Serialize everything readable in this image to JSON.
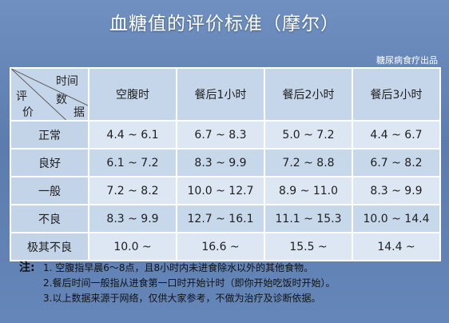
{
  "title": "血糖值的评价标准（摩尔）",
  "source": "糖尿病食疗出品",
  "table": {
    "corner": {
      "time": "时间",
      "data_1": "数",
      "data_2": "据",
      "eval_1": "评",
      "eval_2": "价"
    },
    "columns": [
      "空腹时",
      "餐后1小时",
      "餐后2小时",
      "餐后3小时"
    ],
    "rows": [
      {
        "label": "正常",
        "values": [
          "4.4 ~ 6.1",
          "6.7 ~ 8.3",
          "5.0 ~ 7.2",
          "4.4 ~ 6.7"
        ]
      },
      {
        "label": "良好",
        "values": [
          "6.1 ~ 7.2",
          "8.3 ~ 9.9",
          "7.2 ~ 8.8",
          "6.7 ~ 8.2"
        ]
      },
      {
        "label": "一般",
        "values": [
          "7.2 ~ 8.2",
          "10.0 ~ 12.7",
          "8.9 ~ 11.0",
          "8.3 ~ 9.9"
        ]
      },
      {
        "label": "不良",
        "values": [
          "8.3 ~ 9.9",
          "12.7 ~ 16.1",
          "11.1 ~ 15.3",
          "10.0 ~ 14.4"
        ]
      },
      {
        "label": "极其不良",
        "values": [
          "10.0 ~",
          "16.6 ~",
          "15.5 ~",
          "14.4 ~"
        ]
      }
    ]
  },
  "notes": {
    "label": "注:",
    "items": [
      "1. 空腹指早晨6～8点，且8小时内未进食除水以外的其他食物。",
      "2.餐后时间一般指从进食第一口时开始计时（即你开始吃饭时开始）。",
      "3.以上数据来源于网络，仅供大家参考，不做为治疗及诊断依据。"
    ]
  }
}
